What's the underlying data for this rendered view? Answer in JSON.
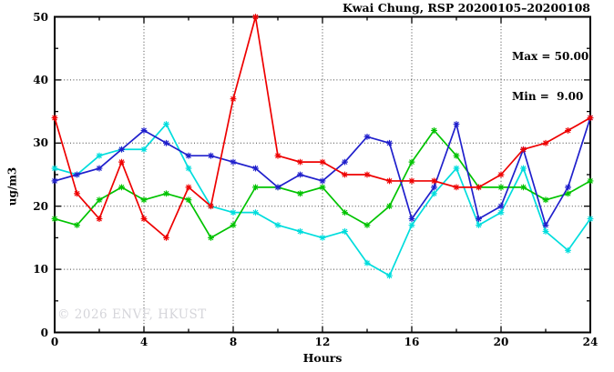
{
  "title": "Kwai Chung, RSP 20200105–20200108",
  "annotations": {
    "max_label": "Max = 50.00",
    "min_label": "Min =  9.00"
  },
  "watermark": "© 2026 ENVF, HKUST",
  "axes": {
    "xlabel": "Hours",
    "ylabel": "ug/m3"
  },
  "chart_data": {
    "type": "line",
    "title": "Kwai Chung, RSP 20200105–20200108",
    "xlabel": "Hours",
    "ylabel": "ug/m3",
    "xlim": [
      0,
      24
    ],
    "ylim": [
      0,
      50
    ],
    "x_major_ticks": [
      0,
      4,
      8,
      12,
      16,
      20,
      24
    ],
    "x_minor_tick_step": 2,
    "y_major_ticks": [
      0,
      10,
      20,
      30,
      40,
      50
    ],
    "y_minor_tick_step": 5,
    "grid": "dotted lines at interior major ticks",
    "legend": "none",
    "marker": "star",
    "stat_max": 50.0,
    "stat_min": 9.0,
    "x": [
      0,
      1,
      2,
      3,
      4,
      5,
      6,
      7,
      8,
      9,
      10,
      11,
      12,
      13,
      14,
      15,
      16,
      17,
      18,
      19,
      20,
      21,
      22,
      23,
      24
    ],
    "series": [
      {
        "name": "cyan-series",
        "color": "#00dddd",
        "values": [
          26,
          25,
          28,
          29,
          29,
          33,
          26,
          20,
          19,
          19,
          17,
          16,
          15,
          16,
          11,
          9,
          17,
          22,
          26,
          17,
          19,
          26,
          16,
          13,
          18
        ]
      },
      {
        "name": "green-series",
        "color": "#00c300",
        "values": [
          18,
          17,
          21,
          23,
          21,
          22,
          21,
          15,
          17,
          23,
          23,
          22,
          23,
          19,
          17,
          20,
          27,
          32,
          28,
          23,
          23,
          23,
          21,
          22,
          24
        ]
      },
      {
        "name": "blue-series",
        "color": "#2020cc",
        "values": [
          24,
          25,
          26,
          29,
          32,
          30,
          28,
          28,
          27,
          26,
          23,
          25,
          24,
          27,
          31,
          30,
          18,
          23,
          33,
          18,
          20,
          29,
          17,
          23,
          34
        ]
      },
      {
        "name": "red-series",
        "color": "#ee0000",
        "values": [
          34,
          22,
          18,
          27,
          18,
          15,
          23,
          20,
          37,
          50,
          28,
          27,
          27,
          25,
          25,
          24,
          24,
          24,
          23,
          23,
          25,
          29,
          30,
          32,
          34
        ]
      }
    ]
  }
}
